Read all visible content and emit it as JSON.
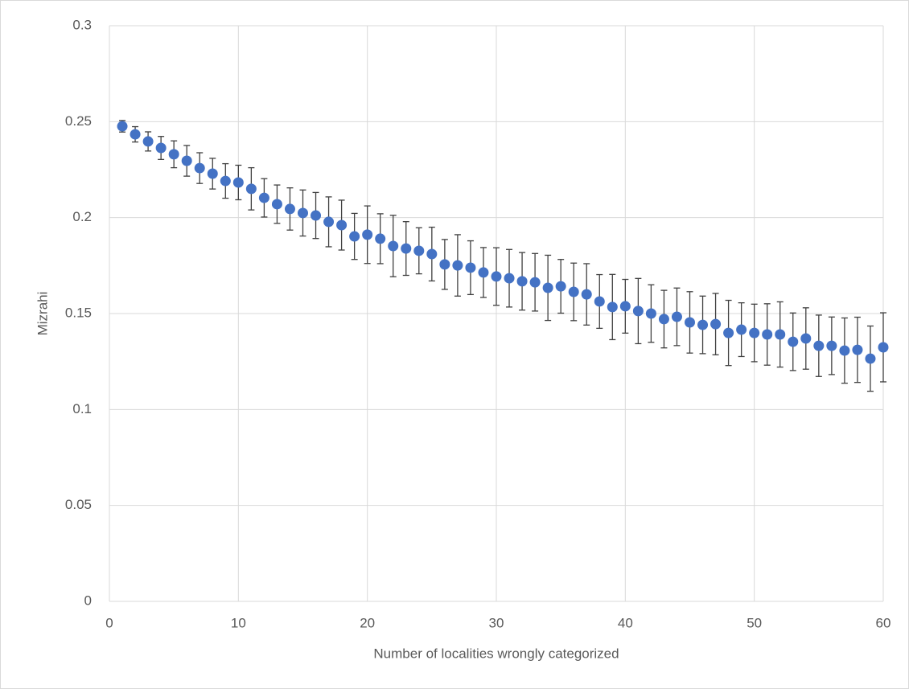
{
  "chart_data": {
    "type": "scatter",
    "x_label": "Number of localities wrongly categorized",
    "y_label": "Mizrahi",
    "x": [
      1,
      2,
      3,
      4,
      5,
      6,
      7,
      8,
      9,
      10,
      11,
      12,
      13,
      14,
      15,
      16,
      17,
      18,
      19,
      20,
      21,
      22,
      23,
      24,
      25,
      26,
      27,
      28,
      29,
      30,
      31,
      32,
      33,
      34,
      35,
      36,
      37,
      38,
      39,
      40,
      41,
      42,
      43,
      44,
      45,
      46,
      47,
      48,
      49,
      50,
      51,
      52,
      53,
      54,
      55,
      56,
      57,
      58,
      59,
      60
    ],
    "values": [
      0.2476,
      0.2434,
      0.2397,
      0.2363,
      0.233,
      0.2296,
      0.2258,
      0.2229,
      0.2191,
      0.2183,
      0.215,
      0.2103,
      0.207,
      0.2045,
      0.2024,
      0.2011,
      0.1978,
      0.1961,
      0.1902,
      0.1911,
      0.189,
      0.1852,
      0.1839,
      0.1827,
      0.181,
      0.1756,
      0.1751,
      0.1739,
      0.1714,
      0.1693,
      0.1684,
      0.1668,
      0.1663,
      0.1634,
      0.1642,
      0.1613,
      0.16,
      0.1563,
      0.1534,
      0.1538,
      0.1513,
      0.15,
      0.1471,
      0.1483,
      0.1454,
      0.1441,
      0.1445,
      0.1399,
      0.1416,
      0.1399,
      0.1391,
      0.1391,
      0.1353,
      0.137,
      0.1332,
      0.1332,
      0.1307,
      0.1311,
      0.1265,
      0.1324
    ],
    "errors": [
      0.003,
      0.004,
      0.005,
      0.006,
      0.007,
      0.008,
      0.008,
      0.008,
      0.009,
      0.009,
      0.011,
      0.01,
      0.01,
      0.011,
      0.012,
      0.012,
      0.013,
      0.013,
      0.012,
      0.015,
      0.013,
      0.016,
      0.014,
      0.012,
      0.014,
      0.013,
      0.016,
      0.014,
      0.013,
      0.015,
      0.015,
      0.015,
      0.015,
      0.017,
      0.014,
      0.015,
      0.016,
      0.014,
      0.017,
      0.014,
      0.017,
      0.015,
      0.015,
      0.015,
      0.016,
      0.015,
      0.016,
      0.017,
      0.014,
      0.015,
      0.016,
      0.017,
      0.015,
      0.016,
      0.016,
      0.015,
      0.017,
      0.017,
      0.017,
      0.018
    ],
    "color": "#4472c4",
    "error_color": "#404040",
    "xlim": [
      0,
      60
    ],
    "xticks": [
      0,
      10,
      20,
      30,
      40,
      50,
      60
    ],
    "ylim": [
      0,
      0.3
    ],
    "yticks": [
      0,
      0.05,
      0.1,
      0.15,
      0.2,
      0.25,
      0.3
    ],
    "grid": true
  }
}
